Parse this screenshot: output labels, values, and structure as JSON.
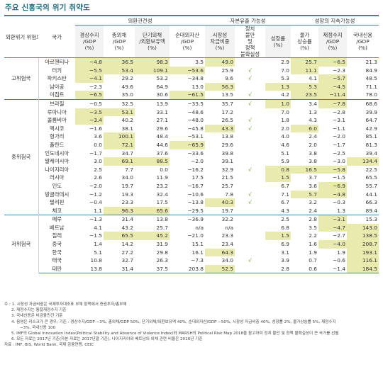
{
  "title": "주요 신흥국의 위기 취약도",
  "headers": {
    "group_col": "외환위기 위험도",
    "country_col": "국가",
    "g1": "외환건전성",
    "g2": "자본유출 가능성",
    "g3": "성장의 지속가능성",
    "cols": [
      "경상수지 /GDP (%)",
      "총외채 /GDP (%)",
      "단기외채 /외환보유액 (%)",
      "순대외자산 /GDP (%)",
      "시장성 자금비중 (%)",
      "정치 불안 및 정책 불확실성",
      "성장률 (%)",
      "물가 상승률 (%)",
      "재정수지 /GDP (%)",
      "국내신용 /GDP (%)"
    ]
  },
  "groups": [
    {
      "label": "고위험국",
      "rows": [
        {
          "name": "아르헨티나",
          "v": [
            "−4.8",
            "36.5",
            "98.3",
            "3.5",
            "49.0",
            "",
            "2.9",
            "25.7",
            "−6.5",
            "21.3"
          ],
          "hl": [
            0,
            1,
            2,
            4,
            7,
            8
          ]
        },
        {
          "name": "터키",
          "v": [
            "−5.5",
            "53.4",
            "109.1",
            "−53.6",
            "25.9",
            "√",
            "7.0",
            "11.1",
            "−2.3",
            "84.9"
          ],
          "hl": [
            0,
            1,
            2,
            3,
            7
          ]
        },
        {
          "name": "파키스탄",
          "v": [
            "−4.1",
            "29.2",
            "53.2",
            "−34.8",
            "9.6",
            "√",
            "5.3",
            "4.1",
            "−5.7",
            "48.5"
          ],
          "hl": [
            0,
            8
          ]
        },
        {
          "name": "남아공",
          "v": [
            "−2.3",
            "49.6",
            "64.9",
            "13.0",
            "56.3",
            "",
            "1.3",
            "5.3",
            "−4.5",
            "71.1"
          ],
          "hl": [
            4,
            6,
            7,
            8
          ]
        },
        {
          "name": "이집트",
          "v": [
            "−6.5",
            "35.0",
            "30.6",
            "−61.5",
            "13.5",
            "√",
            "4.2",
            "23.5",
            "−11.4",
            "78.0"
          ],
          "hl": [
            0,
            3,
            7,
            8
          ]
        }
      ]
    },
    {
      "label": "중위험국",
      "rows": [
        {
          "name": "브라질",
          "v": [
            "−0.5",
            "32.5",
            "13.9",
            "−33.5",
            "35.7",
            "√",
            "1.0",
            "3.4",
            "−7.8",
            "68.6"
          ],
          "hl": [
            6,
            8
          ]
        },
        {
          "name": "루마니아",
          "v": [
            "−3.5",
            "53.1",
            "33.1",
            "−48.6",
            "17.2",
            "",
            "7.0",
            "1.3",
            "−2.8",
            "39.9"
          ],
          "hl": [
            0,
            1
          ]
        },
        {
          "name": "콜롬비아",
          "v": [
            "−3.4",
            "40.2",
            "27.1",
            "−48.0",
            "26.5",
            "√",
            "1.8",
            "4.3",
            "−3.1",
            "64.7"
          ],
          "hl": [
            0
          ]
        },
        {
          "name": "멕시코",
          "v": [
            "−1.6",
            "38.1",
            "29.6",
            "−45.8",
            "43.3",
            "√",
            "2.0",
            "6.0",
            "−1.1",
            "42.9"
          ],
          "hl": [
            4,
            7
          ]
        },
        {
          "name": "헝가리",
          "v": [
            "3.6",
            "100.1",
            "48.4",
            "−53.1",
            "13.8",
            "",
            "4.0",
            "2.4",
            "−2.0",
            "85.1"
          ],
          "hl": [
            1
          ]
        },
        {
          "name": "폴란드",
          "v": [
            "0.0",
            "72.1",
            "44.6",
            "−65.9",
            "29.6",
            "",
            "4.6",
            "2.0",
            "−1.7",
            "81.3"
          ],
          "hl": [
            1,
            3
          ]
        },
        {
          "name": "인도네시아",
          "v": [
            "−1.7",
            "34.7",
            "37.6",
            "−33.6",
            "39.8",
            "",
            "5.1",
            "3.8",
            "−2.5",
            "39.4"
          ],
          "hl": []
        },
        {
          "name": "말레이시아",
          "v": [
            "3.0",
            "69.1",
            "88.5",
            "−2.0",
            "39.1",
            "",
            "5.9",
            "3.8",
            "−3.0",
            "134.4"
          ],
          "hl": [
            1,
            2,
            9
          ]
        },
        {
          "name": "나이지리아",
          "v": [
            "2.5",
            "7.7",
            "0.0",
            "−16.2",
            "32.9",
            "√",
            "0.8",
            "16.5",
            "−5.8",
            "22.5"
          ],
          "hl": [
            6,
            7,
            8
          ]
        },
        {
          "name": "러시아",
          "v": [
            "2.6",
            "34.0",
            "11.9",
            "17.5",
            "21.5",
            "",
            "1.5",
            "3.7",
            "−1.5",
            "65.5"
          ],
          "hl": [
            6
          ]
        },
        {
          "name": "인도",
          "v": [
            "−2.0",
            "19.7",
            "23.2",
            "−16.7",
            "25.7",
            "",
            "6.7",
            "3.6",
            "−6.9",
            "55.7"
          ],
          "hl": [
            8
          ]
        },
        {
          "name": "방글라데시",
          "v": [
            "−1.2",
            "19.3",
            "32.4",
            "−10.6",
            "7.8",
            "√",
            "7.1",
            "5.7",
            "−4.8",
            "44.1"
          ],
          "hl": [
            7,
            8
          ]
        },
        {
          "name": "필리핀",
          "v": [
            "−0.4",
            "23.3",
            "17.5",
            "−13.8",
            "40.3",
            "√",
            "6.7",
            "3.2",
            "−0.3",
            "66.3"
          ],
          "hl": [
            4
          ]
        },
        {
          "name": "체코",
          "v": [
            "1.1",
            "96.3",
            "65.6",
            "−29.5",
            "19.7",
            "",
            "4.3",
            "2.4",
            "1.3",
            "89.4"
          ],
          "hl": [
            1,
            2
          ]
        }
      ]
    },
    {
      "label": "저위험국",
      "rows": [
        {
          "name": "페루",
          "v": [
            "−1.3",
            "31.4",
            "13.8",
            "−36.9",
            "32.2",
            "",
            "2.5",
            "2.8",
            "−3.1",
            "15.3"
          ],
          "hl": [
            8
          ]
        },
        {
          "name": "베트남",
          "v": [
            "4.1",
            "43.2",
            "25.7",
            "n/a",
            "n/a",
            "",
            "6.8",
            "3.5",
            "−4.7",
            "143.0"
          ],
          "hl": [
            8,
            9
          ]
        },
        {
          "name": "칠레",
          "v": [
            "−1.5",
            "65.5",
            "45.2",
            "−21.0",
            "23.3",
            "",
            "1.5",
            "2.2",
            "−2.7",
            "138.5"
          ],
          "hl": [
            1,
            2,
            6,
            9
          ]
        },
        {
          "name": "중국",
          "v": [
            "1.4",
            "14.2",
            "31.9",
            "15.1",
            "23.4",
            "",
            "6.9",
            "1.6",
            "−4.0",
            "208.7"
          ],
          "hl": [
            8,
            9
          ]
        },
        {
          "name": "한국",
          "v": [
            "5.1",
            "27.2",
            "29.8",
            "16.1",
            "64.3",
            "",
            "3.1",
            "1.9",
            "1.9",
            "193.1"
          ],
          "hl": [
            4,
            9
          ]
        },
        {
          "name": "태국",
          "v": [
            "10.8",
            "32.7",
            "26.3",
            "−7.3",
            "34.0",
            "√",
            "3.9",
            "0.7",
            "−0.6",
            "116.1"
          ],
          "hl": [
            9
          ]
        },
        {
          "name": "대만",
          "v": [
            "13.8",
            "31.4",
            "37.5",
            "203.8",
            "52.5",
            "",
            "2.8",
            "0.6",
            "−1.4",
            "184.5"
          ],
          "hl": [
            4,
            9
          ]
        }
      ]
    }
  ],
  "notes": [
    "주 : 1. 시장성 자금비중은 국제투자대조표 부채 항목에서 증권투자/총부채",
    "2. 재정수지는 통합재정수지 기준",
    "3. 국내신용은 비금융민간 기준",
    "4. 음영은 리스크가 큰 경우; 기준 : 경상수지/GDP −3%, 총외채/GDP 50%, 단기외채/외환보유액 40%, 순대외자산/GDP −50%, 시장성 자금비중 40%, 성장률 2%, 물가상승률 5%, 재정수지",
    "−3%, 국내신용 100",
    "5. IMF의 Global Innovation Index(Political Stability and Absence of Violence Index)와 MARSH의 Political Risk Map 2018을 참고하여 정치 불안 및 정책 불확실성이 큰 국가를 선별",
    "6. 모든 자료는 2017년 기준(자본 자료는 2017년말 기준), 나이지리아와 베트남의 외채 관련 비율은 2016년 기준",
    "자료 : IMF, BIS, World Bank, 국제 금융연맹, CEIC"
  ],
  "colors": {
    "accent": "#2d8aa6",
    "highlight": "#e9eaae",
    "check": "#6a9a2a",
    "title": "#1f6a80"
  }
}
